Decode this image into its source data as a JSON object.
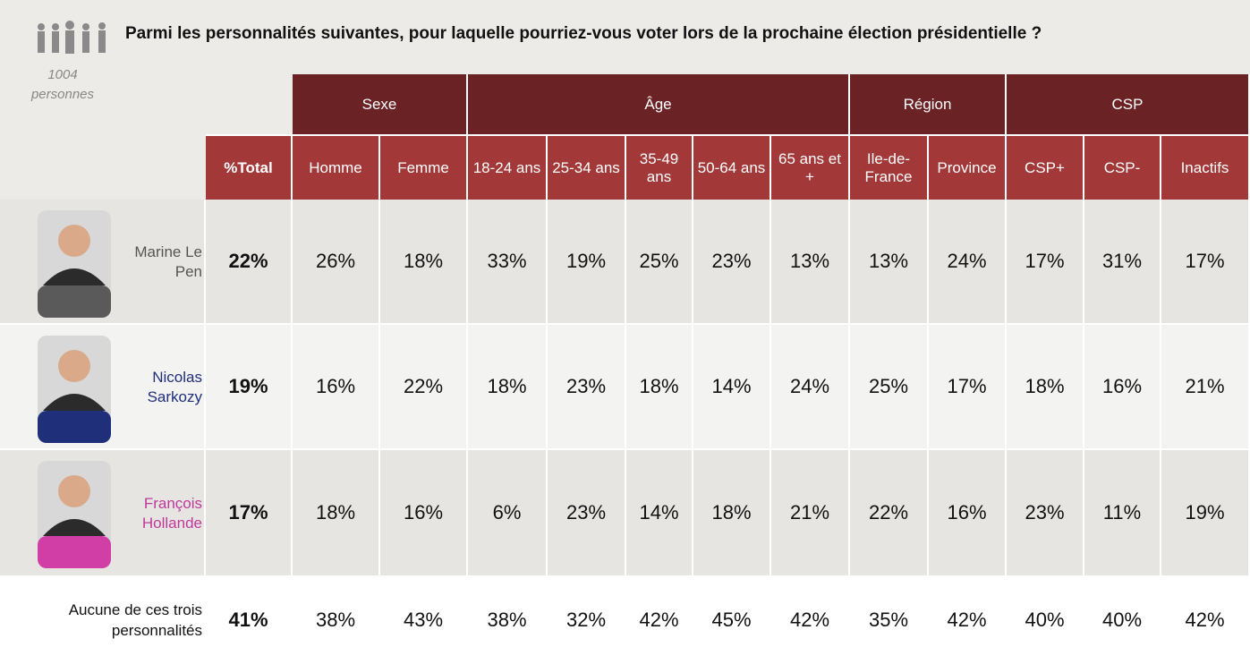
{
  "header": {
    "title": "Parmi les personnalités suivantes, pour laquelle pourriez-vous voter lors de la prochaine élection présidentielle ?",
    "sample_count": "1004",
    "sample_label": "personnes"
  },
  "table": {
    "groups": [
      "Sexe",
      "Âge",
      "Région",
      "CSP"
    ],
    "columns": [
      "%Total",
      "Homme",
      "Femme",
      "18-24 ans",
      "25-34 ans",
      "35-49 ans",
      "50-64 ans",
      "65 ans et +",
      "Ile-de-France",
      "Province",
      "CSP+",
      "CSP-",
      "Inactifs"
    ],
    "rows": [
      {
        "name": "Marine Le Pen",
        "color": "#555555",
        "values": [
          "22%",
          "26%",
          "18%",
          "33%",
          "19%",
          "25%",
          "23%",
          "13%",
          "13%",
          "24%",
          "17%",
          "31%",
          "17%"
        ]
      },
      {
        "name": "Nicolas Sarkozy",
        "color": "#1f2f7a",
        "values": [
          "19%",
          "16%",
          "22%",
          "18%",
          "23%",
          "18%",
          "14%",
          "24%",
          "25%",
          "17%",
          "18%",
          "16%",
          "21%"
        ]
      },
      {
        "name": "François Hollande",
        "color": "#c0399a",
        "values": [
          "17%",
          "18%",
          "16%",
          "6%",
          "23%",
          "14%",
          "18%",
          "21%",
          "22%",
          "16%",
          "23%",
          "11%",
          "19%"
        ]
      },
      {
        "name": "Aucune de ces trois personnalités",
        "color": "#111111",
        "values": [
          "41%",
          "38%",
          "43%",
          "38%",
          "32%",
          "42%",
          "45%",
          "42%",
          "35%",
          "42%",
          "40%",
          "40%",
          "42%"
        ]
      }
    ]
  }
}
